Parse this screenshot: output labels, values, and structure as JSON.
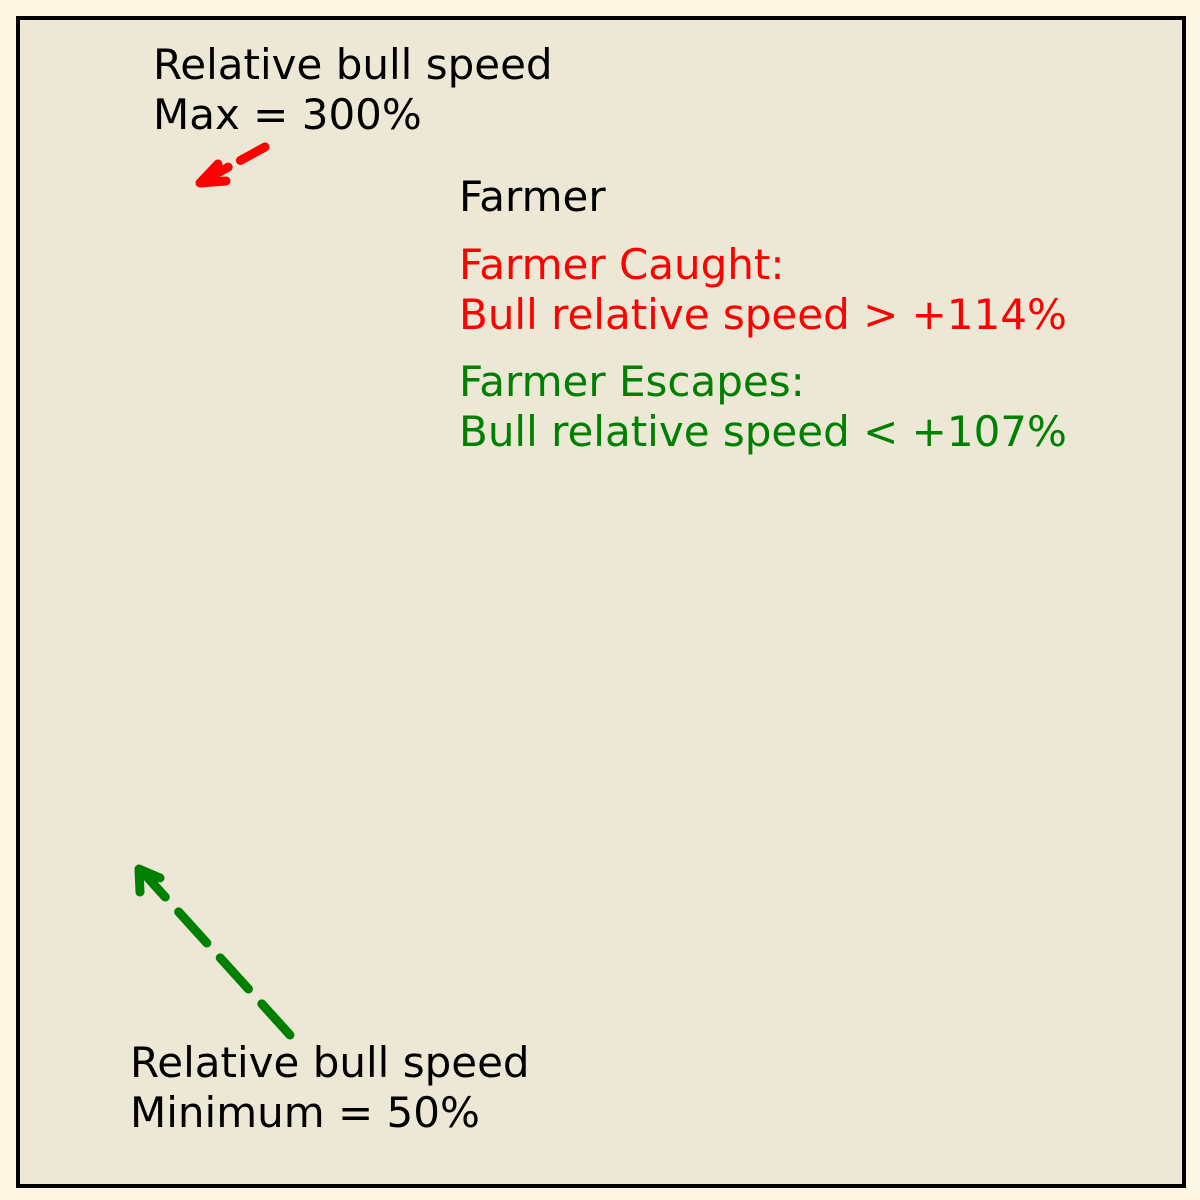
{
  "max_note": {
    "line1": "Relative bull speed",
    "line2": "Max = 300%"
  },
  "farmer_label": "Farmer",
  "caught": {
    "line1": "Farmer Caught:",
    "line2": "Bull relative speed > +114%"
  },
  "escapes": {
    "line1": "Farmer Escapes:",
    "line2": "Bull relative speed < +107%"
  },
  "min_note": {
    "line1": "Relative bull speed",
    "line2": "Minimum = 50%"
  },
  "colors": {
    "background": "#ede7d5",
    "caught": "#ff0000",
    "escapes": "#008000",
    "text": "#000000"
  }
}
